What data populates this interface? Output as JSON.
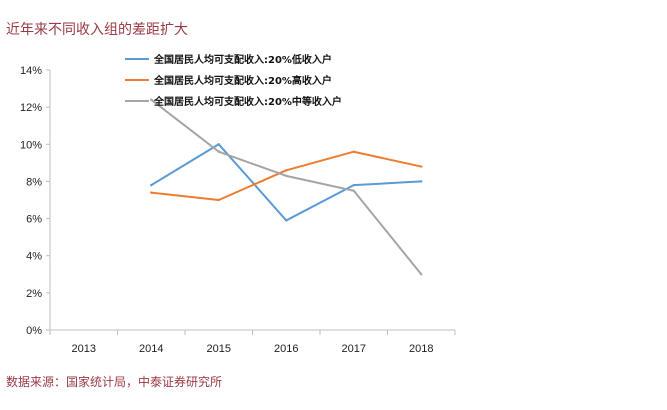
{
  "title": "近年来不同收入组的差距扩大",
  "source": "数据来源：国家统计局，中泰证券研究所",
  "chart_data": {
    "type": "line",
    "categories": [
      "2013",
      "2014",
      "2015",
      "2016",
      "2017",
      "2018"
    ],
    "ylim": [
      0,
      14
    ],
    "yticks": [
      "0%",
      "2%",
      "4%",
      "6%",
      "8%",
      "10%",
      "12%",
      "14%"
    ],
    "ytick_values": [
      0,
      2,
      4,
      6,
      8,
      10,
      12,
      14
    ],
    "y_unit": "%",
    "grid": false,
    "legend_position": "top",
    "series": [
      {
        "name": "全国居民人均可支配收入:20%低收入户",
        "color": "#5b9bd5",
        "values": [
          null,
          7.8,
          10.0,
          5.9,
          7.8,
          8.0
        ]
      },
      {
        "name": "全国居民人均可支配收入:20%高收入户",
        "color": "#ed7d31",
        "values": [
          null,
          7.4,
          7.0,
          8.6,
          9.6,
          8.8
        ]
      },
      {
        "name": "全国居民人均可支配收入:20%中等收入户",
        "color": "#a5a5a5",
        "values": [
          null,
          12.4,
          9.6,
          8.3,
          7.5,
          3.0
        ]
      }
    ]
  }
}
